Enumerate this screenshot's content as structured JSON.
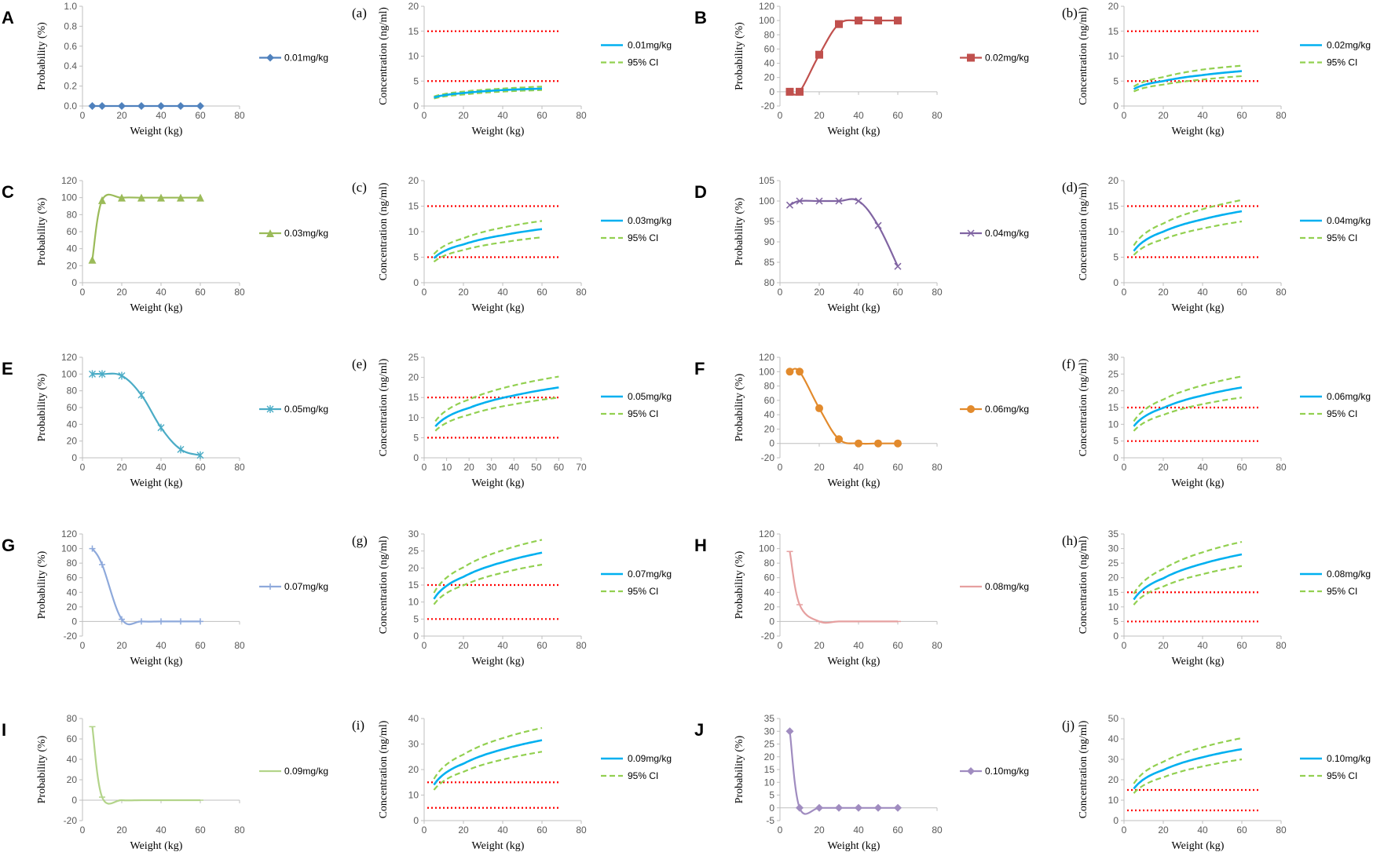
{
  "figure": {
    "background": "#ffffff"
  },
  "axis_labels": {
    "probability": "Probability (%)",
    "concentration": "Concentration (ng/ml)",
    "weight": "Weight (kg)"
  },
  "colors": {
    "threshold": "#ff0000",
    "mean": "#00b0f0",
    "ci": "#92d050",
    "axis": "#bfbfbf"
  },
  "chart_data": [
    {
      "type": "line",
      "kind": "probability",
      "letter": "A",
      "legend": "0.01mg/kg",
      "color": "#4f81bd",
      "marker": "diamond",
      "x": [
        5,
        10,
        20,
        30,
        40,
        50,
        60
      ],
      "y": [
        0,
        0,
        0,
        0,
        0,
        0,
        0
      ],
      "xlim": [
        0,
        80
      ],
      "xticks": [
        0,
        20,
        40,
        60,
        80
      ],
      "ylim": [
        0,
        1.0
      ],
      "yticks": [
        0,
        0.2,
        0.4,
        0.6,
        0.8,
        1.0
      ],
      "ytick_labels": [
        "0.0",
        "0.2",
        "0.4",
        "0.6",
        "0.8",
        "1.0"
      ],
      "xlabel": "Weight (kg)",
      "ylabel": "Probability (%)"
    },
    {
      "type": "line",
      "kind": "concentration",
      "letter": "(a)",
      "legend": "0.01mg/kg",
      "ci_legend": "95% CI",
      "mean": [
        [
          5,
          1.7
        ],
        [
          20,
          2.6
        ],
        [
          40,
          3.2
        ],
        [
          60,
          3.5
        ]
      ],
      "upper": [
        [
          5,
          1.9
        ],
        [
          20,
          2.9
        ],
        [
          40,
          3.5
        ],
        [
          60,
          3.9
        ]
      ],
      "lower": [
        [
          5,
          1.5
        ],
        [
          20,
          2.3
        ],
        [
          40,
          2.9
        ],
        [
          60,
          3.2
        ]
      ],
      "thresholds": [
        5,
        15
      ],
      "xlim": [
        0,
        80
      ],
      "xticks": [
        0,
        20,
        40,
        60,
        80
      ],
      "ylim": [
        0,
        20
      ],
      "yticks": [
        0,
        5,
        10,
        15,
        20
      ],
      "xlabel": "Weight (kg)",
      "ylabel": "Concentration (ng/ml)"
    },
    {
      "type": "line",
      "kind": "probability",
      "letter": "B",
      "legend": "0.02mg/kg",
      "color": "#c0504d",
      "marker": "square",
      "x": [
        5,
        10,
        20,
        30,
        40,
        50,
        60
      ],
      "y": [
        0,
        0,
        52,
        95,
        100,
        100,
        100
      ],
      "xlim": [
        0,
        80
      ],
      "xticks": [
        0,
        20,
        40,
        60,
        80
      ],
      "ylim": [
        -20,
        120
      ],
      "yticks": [
        -20,
        0,
        20,
        40,
        60,
        80,
        100,
        120
      ],
      "xlabel": "Weight (kg)",
      "ylabel": "Probability (%)"
    },
    {
      "type": "line",
      "kind": "concentration",
      "letter": "(b)",
      "legend": "0.02mg/kg",
      "ci_legend": "95% CI",
      "mean": [
        [
          5,
          3.4
        ],
        [
          20,
          5.0
        ],
        [
          40,
          6.2
        ],
        [
          60,
          7.0
        ]
      ],
      "upper": [
        [
          5,
          3.9
        ],
        [
          20,
          5.8
        ],
        [
          40,
          7.3
        ],
        [
          60,
          8.1
        ]
      ],
      "lower": [
        [
          5,
          2.9
        ],
        [
          20,
          4.3
        ],
        [
          40,
          5.3
        ],
        [
          60,
          6.0
        ]
      ],
      "thresholds": [
        5,
        15
      ],
      "xlim": [
        0,
        80
      ],
      "xticks": [
        0,
        20,
        40,
        60,
        80
      ],
      "ylim": [
        0,
        20
      ],
      "yticks": [
        0,
        5,
        10,
        15,
        20
      ],
      "xlabel": "Weight (kg)",
      "ylabel": "Concentration (ng/ml)"
    },
    {
      "type": "line",
      "kind": "probability",
      "letter": "C",
      "legend": "0.03mg/kg",
      "color": "#9bbb59",
      "marker": "triangle",
      "x": [
        5,
        10,
        20,
        30,
        40,
        50,
        60
      ],
      "y": [
        27,
        97,
        100,
        100,
        100,
        100,
        100
      ],
      "xlim": [
        0,
        80
      ],
      "xticks": [
        0,
        20,
        40,
        60,
        80
      ],
      "ylim": [
        0,
        120
      ],
      "yticks": [
        0,
        20,
        40,
        60,
        80,
        100,
        120
      ],
      "xlabel": "Weight (kg)",
      "ylabel": "Probability (%)"
    },
    {
      "type": "line",
      "kind": "concentration",
      "letter": "(c)",
      "legend": "0.03mg/kg",
      "ci_legend": "95% CI",
      "mean": [
        [
          5,
          4.8
        ],
        [
          20,
          7.5
        ],
        [
          40,
          9.3
        ],
        [
          60,
          10.5
        ]
      ],
      "upper": [
        [
          5,
          5.6
        ],
        [
          20,
          8.7
        ],
        [
          40,
          10.8
        ],
        [
          60,
          12.1
        ]
      ],
      "lower": [
        [
          5,
          4.1
        ],
        [
          20,
          6.4
        ],
        [
          40,
          7.9
        ],
        [
          60,
          8.9
        ]
      ],
      "thresholds": [
        5,
        15
      ],
      "xlim": [
        0,
        80
      ],
      "xticks": [
        0,
        20,
        40,
        60,
        80
      ],
      "ylim": [
        0,
        20
      ],
      "yticks": [
        0,
        5,
        10,
        15,
        20
      ],
      "xlabel": "Weight (kg)",
      "ylabel": "Concentration (ng/ml)"
    },
    {
      "type": "line",
      "kind": "probability",
      "letter": "D",
      "legend": "0.04mg/kg",
      "color": "#8064a2",
      "marker": "x",
      "x": [
        5,
        10,
        20,
        30,
        40,
        50,
        60
      ],
      "y": [
        99,
        100,
        100,
        100,
        100,
        94,
        84
      ],
      "xlim": [
        0,
        80
      ],
      "xticks": [
        0,
        20,
        40,
        60,
        80
      ],
      "ylim": [
        80,
        105
      ],
      "yticks": [
        80,
        85,
        90,
        95,
        100,
        105
      ],
      "xlabel": "Weight (kg)",
      "ylabel": "Probability (%)"
    },
    {
      "type": "line",
      "kind": "concentration",
      "letter": "(d)",
      "legend": "0.04mg/kg",
      "ci_legend": "95% CI",
      "mean": [
        [
          5,
          6.2
        ],
        [
          20,
          10.0
        ],
        [
          40,
          12.4
        ],
        [
          60,
          14.0
        ]
      ],
      "upper": [
        [
          5,
          7.3
        ],
        [
          20,
          11.6
        ],
        [
          40,
          14.4
        ],
        [
          60,
          16.2
        ]
      ],
      "lower": [
        [
          5,
          5.4
        ],
        [
          20,
          8.5
        ],
        [
          40,
          10.6
        ],
        [
          60,
          12.0
        ]
      ],
      "thresholds": [
        5,
        15
      ],
      "xlim": [
        0,
        80
      ],
      "xticks": [
        0,
        20,
        40,
        60,
        80
      ],
      "ylim": [
        0,
        20
      ],
      "yticks": [
        0,
        5,
        10,
        15,
        20
      ],
      "xlabel": "Weight (kg)",
      "ylabel": "Concentration (ng/ml)"
    },
    {
      "type": "line",
      "kind": "probability",
      "letter": "E",
      "legend": "0.05mg/kg",
      "color": "#4bacc6",
      "marker": "asterisk",
      "x": [
        5,
        10,
        20,
        30,
        40,
        50,
        60
      ],
      "y": [
        100,
        100,
        98,
        75,
        36,
        10,
        3
      ],
      "xlim": [
        0,
        80
      ],
      "xticks": [
        0,
        20,
        40,
        60,
        80
      ],
      "ylim": [
        0,
        120
      ],
      "yticks": [
        0,
        20,
        40,
        60,
        80,
        100,
        120
      ],
      "xlabel": "Weight (kg)",
      "ylabel": "Probability (%)"
    },
    {
      "type": "line",
      "kind": "concentration",
      "letter": "(e)",
      "legend": "0.05mg/kg",
      "ci_legend": "95% CI",
      "mean": [
        [
          5,
          7.8
        ],
        [
          20,
          12.4
        ],
        [
          40,
          15.5
        ],
        [
          60,
          17.5
        ]
      ],
      "upper": [
        [
          5,
          9.1
        ],
        [
          20,
          14.5
        ],
        [
          40,
          18.0
        ],
        [
          60,
          20.2
        ]
      ],
      "lower": [
        [
          5,
          6.7
        ],
        [
          20,
          10.7
        ],
        [
          40,
          13.3
        ],
        [
          60,
          15.0
        ]
      ],
      "thresholds": [
        5,
        15
      ],
      "xlim": [
        0,
        70
      ],
      "xticks": [
        0,
        10,
        20,
        30,
        40,
        50,
        60,
        70
      ],
      "ylim": [
        0,
        25
      ],
      "yticks": [
        0,
        5,
        10,
        15,
        20,
        25
      ],
      "xlabel": "Weight (kg)",
      "ylabel": "Concentration (ng/ml)"
    },
    {
      "type": "line",
      "kind": "probability",
      "letter": "F",
      "legend": "0.06mg/kg",
      "color": "#e28a2c",
      "marker": "circle",
      "x": [
        5,
        10,
        20,
        30,
        40,
        50,
        60
      ],
      "y": [
        100,
        100,
        49,
        6,
        0,
        0,
        0
      ],
      "xlim": [
        0,
        80
      ],
      "xticks": [
        0,
        20,
        40,
        60,
        80
      ],
      "ylim": [
        -20,
        120
      ],
      "yticks": [
        -20,
        0,
        20,
        40,
        60,
        80,
        100,
        120
      ],
      "xlabel": "Weight (kg)",
      "ylabel": "Probability (%)"
    },
    {
      "type": "line",
      "kind": "concentration",
      "letter": "(f)",
      "legend": "0.06mg/kg",
      "ci_legend": "95% CI",
      "mean": [
        [
          5,
          9.4
        ],
        [
          20,
          14.9
        ],
        [
          40,
          18.6
        ],
        [
          60,
          21.0
        ]
      ],
      "upper": [
        [
          5,
          10.9
        ],
        [
          20,
          17.4
        ],
        [
          40,
          21.6
        ],
        [
          60,
          24.3
        ]
      ],
      "lower": [
        [
          5,
          8.0
        ],
        [
          20,
          12.8
        ],
        [
          40,
          16.0
        ],
        [
          60,
          18.0
        ]
      ],
      "thresholds": [
        5,
        15
      ],
      "xlim": [
        0,
        80
      ],
      "xticks": [
        0,
        20,
        40,
        60,
        80
      ],
      "ylim": [
        0,
        30
      ],
      "yticks": [
        0,
        5,
        10,
        15,
        20,
        25,
        30
      ],
      "xlabel": "Weight (kg)",
      "ylabel": "Concentration (ng/ml)"
    },
    {
      "type": "line",
      "kind": "probability",
      "letter": "G",
      "legend": "0.07mg/kg",
      "color": "#8ea9db",
      "marker": "plus",
      "x": [
        5,
        10,
        20,
        30,
        40,
        50,
        60
      ],
      "y": [
        100,
        78,
        3,
        0,
        0,
        0,
        0
      ],
      "xlim": [
        0,
        80
      ],
      "xticks": [
        0,
        20,
        40,
        60,
        80
      ],
      "ylim": [
        -20,
        120
      ],
      "yticks": [
        -20,
        0,
        20,
        40,
        60,
        80,
        100,
        120
      ],
      "xlabel": "Weight (kg)",
      "ylabel": "Probability (%)"
    },
    {
      "type": "line",
      "kind": "concentration",
      "letter": "(g)",
      "legend": "0.07mg/kg",
      "ci_legend": "95% CI",
      "mean": [
        [
          5,
          10.9
        ],
        [
          20,
          17.4
        ],
        [
          40,
          21.7
        ],
        [
          60,
          24.5
        ]
      ],
      "upper": [
        [
          5,
          12.7
        ],
        [
          20,
          20.2
        ],
        [
          40,
          25.2
        ],
        [
          60,
          28.3
        ]
      ],
      "lower": [
        [
          5,
          9.3
        ],
        [
          20,
          14.9
        ],
        [
          40,
          18.6
        ],
        [
          60,
          21.0
        ]
      ],
      "thresholds": [
        5,
        15
      ],
      "xlim": [
        0,
        80
      ],
      "xticks": [
        0,
        20,
        40,
        60,
        80
      ],
      "ylim": [
        0,
        30
      ],
      "yticks": [
        0,
        5,
        10,
        15,
        20,
        25,
        30
      ],
      "xlabel": "Weight (kg)",
      "ylabel": "Concentration (ng/ml)"
    },
    {
      "type": "line",
      "kind": "probability",
      "letter": "H",
      "legend": "0.08mg/kg",
      "color": "#e6a0a0",
      "marker": "dash",
      "x": [
        5,
        10,
        20,
        30,
        40,
        50,
        60
      ],
      "y": [
        96,
        23,
        0,
        0,
        0,
        0,
        0
      ],
      "xlim": [
        0,
        80
      ],
      "xticks": [
        0,
        20,
        40,
        60,
        80
      ],
      "ylim": [
        -20,
        120
      ],
      "yticks": [
        -20,
        0,
        20,
        40,
        60,
        80,
        100,
        120
      ],
      "xlabel": "Weight (kg)",
      "ylabel": "Probability (%)"
    },
    {
      "type": "line",
      "kind": "concentration",
      "letter": "(h)",
      "legend": "0.08mg/kg",
      "ci_legend": "95% CI",
      "mean": [
        [
          5,
          12.5
        ],
        [
          20,
          19.8
        ],
        [
          40,
          24.8
        ],
        [
          60,
          28.0
        ]
      ],
      "upper": [
        [
          5,
          14.5
        ],
        [
          20,
          23.0
        ],
        [
          40,
          28.7
        ],
        [
          60,
          32.3
        ]
      ],
      "lower": [
        [
          5,
          10.7
        ],
        [
          20,
          17.0
        ],
        [
          40,
          21.2
        ],
        [
          60,
          24.0
        ]
      ],
      "thresholds": [
        5,
        15
      ],
      "xlim": [
        0,
        80
      ],
      "xticks": [
        0,
        20,
        40,
        60,
        80
      ],
      "ylim": [
        0,
        35
      ],
      "yticks": [
        0,
        5,
        10,
        15,
        20,
        25,
        30,
        35
      ],
      "xlabel": "Weight (kg)",
      "ylabel": "Concentration (ng/ml)"
    },
    {
      "type": "line",
      "kind": "probability",
      "letter": "I",
      "legend": "0.09mg/kg",
      "color": "#b3d48a",
      "marker": "dash",
      "x": [
        5,
        10,
        20,
        30,
        40,
        50,
        60
      ],
      "y": [
        72,
        3,
        0,
        0,
        0,
        0,
        0
      ],
      "xlim": [
        0,
        80
      ],
      "xticks": [
        0,
        20,
        40,
        60,
        80
      ],
      "ylim": [
        -20,
        80
      ],
      "yticks": [
        -20,
        0,
        20,
        40,
        60,
        80
      ],
      "xlabel": "Weight (kg)",
      "ylabel": "Probability (%)"
    },
    {
      "type": "line",
      "kind": "concentration",
      "letter": "(i)",
      "legend": "0.09mg/kg",
      "ci_legend": "95% CI",
      "mean": [
        [
          5,
          14.0
        ],
        [
          20,
          22.3
        ],
        [
          40,
          27.9
        ],
        [
          60,
          31.5
        ]
      ],
      "upper": [
        [
          5,
          16.3
        ],
        [
          20,
          25.9
        ],
        [
          40,
          32.3
        ],
        [
          60,
          36.3
        ]
      ],
      "lower": [
        [
          5,
          12.0
        ],
        [
          20,
          19.1
        ],
        [
          40,
          23.9
        ],
        [
          60,
          27.0
        ]
      ],
      "thresholds": [
        5,
        15
      ],
      "xlim": [
        0,
        80
      ],
      "xticks": [
        0,
        20,
        40,
        60,
        80
      ],
      "ylim": [
        0,
        40
      ],
      "yticks": [
        0,
        10,
        20,
        30,
        40
      ],
      "xlabel": "Weight (kg)",
      "ylabel": "Concentration (ng/ml)"
    },
    {
      "type": "line",
      "kind": "probability",
      "letter": "J",
      "legend": "0.10mg/kg",
      "color": "#a08cc0",
      "marker": "diamond",
      "x": [
        5,
        10,
        20,
        30,
        40,
        50,
        60
      ],
      "y": [
        30,
        0,
        0,
        0,
        0,
        0,
        0
      ],
      "xlim": [
        0,
        80
      ],
      "xticks": [
        0,
        20,
        40,
        60,
        80
      ],
      "ylim": [
        -5,
        35
      ],
      "yticks": [
        -5,
        0,
        5,
        10,
        15,
        20,
        25,
        30,
        35
      ],
      "xlabel": "Weight (kg)",
      "ylabel": "Probability (%)"
    },
    {
      "type": "line",
      "kind": "concentration",
      "letter": "(j)",
      "legend": "0.10mg/kg",
      "ci_legend": "95% CI",
      "mean": [
        [
          5,
          15.6
        ],
        [
          20,
          24.8
        ],
        [
          40,
          31.0
        ],
        [
          60,
          35.0
        ]
      ],
      "upper": [
        [
          5,
          18.1
        ],
        [
          20,
          28.8
        ],
        [
          40,
          35.9
        ],
        [
          60,
          40.4
        ]
      ],
      "lower": [
        [
          5,
          13.4
        ],
        [
          20,
          21.2
        ],
        [
          40,
          26.5
        ],
        [
          60,
          30.0
        ]
      ],
      "thresholds": [
        5,
        15
      ],
      "xlim": [
        0,
        80
      ],
      "xticks": [
        0,
        20,
        40,
        60,
        80
      ],
      "ylim": [
        0,
        50
      ],
      "yticks": [
        0,
        10,
        20,
        30,
        40,
        50
      ],
      "xlabel": "Weight (kg)",
      "ylabel": "Concentration (ng/ml)"
    }
  ]
}
